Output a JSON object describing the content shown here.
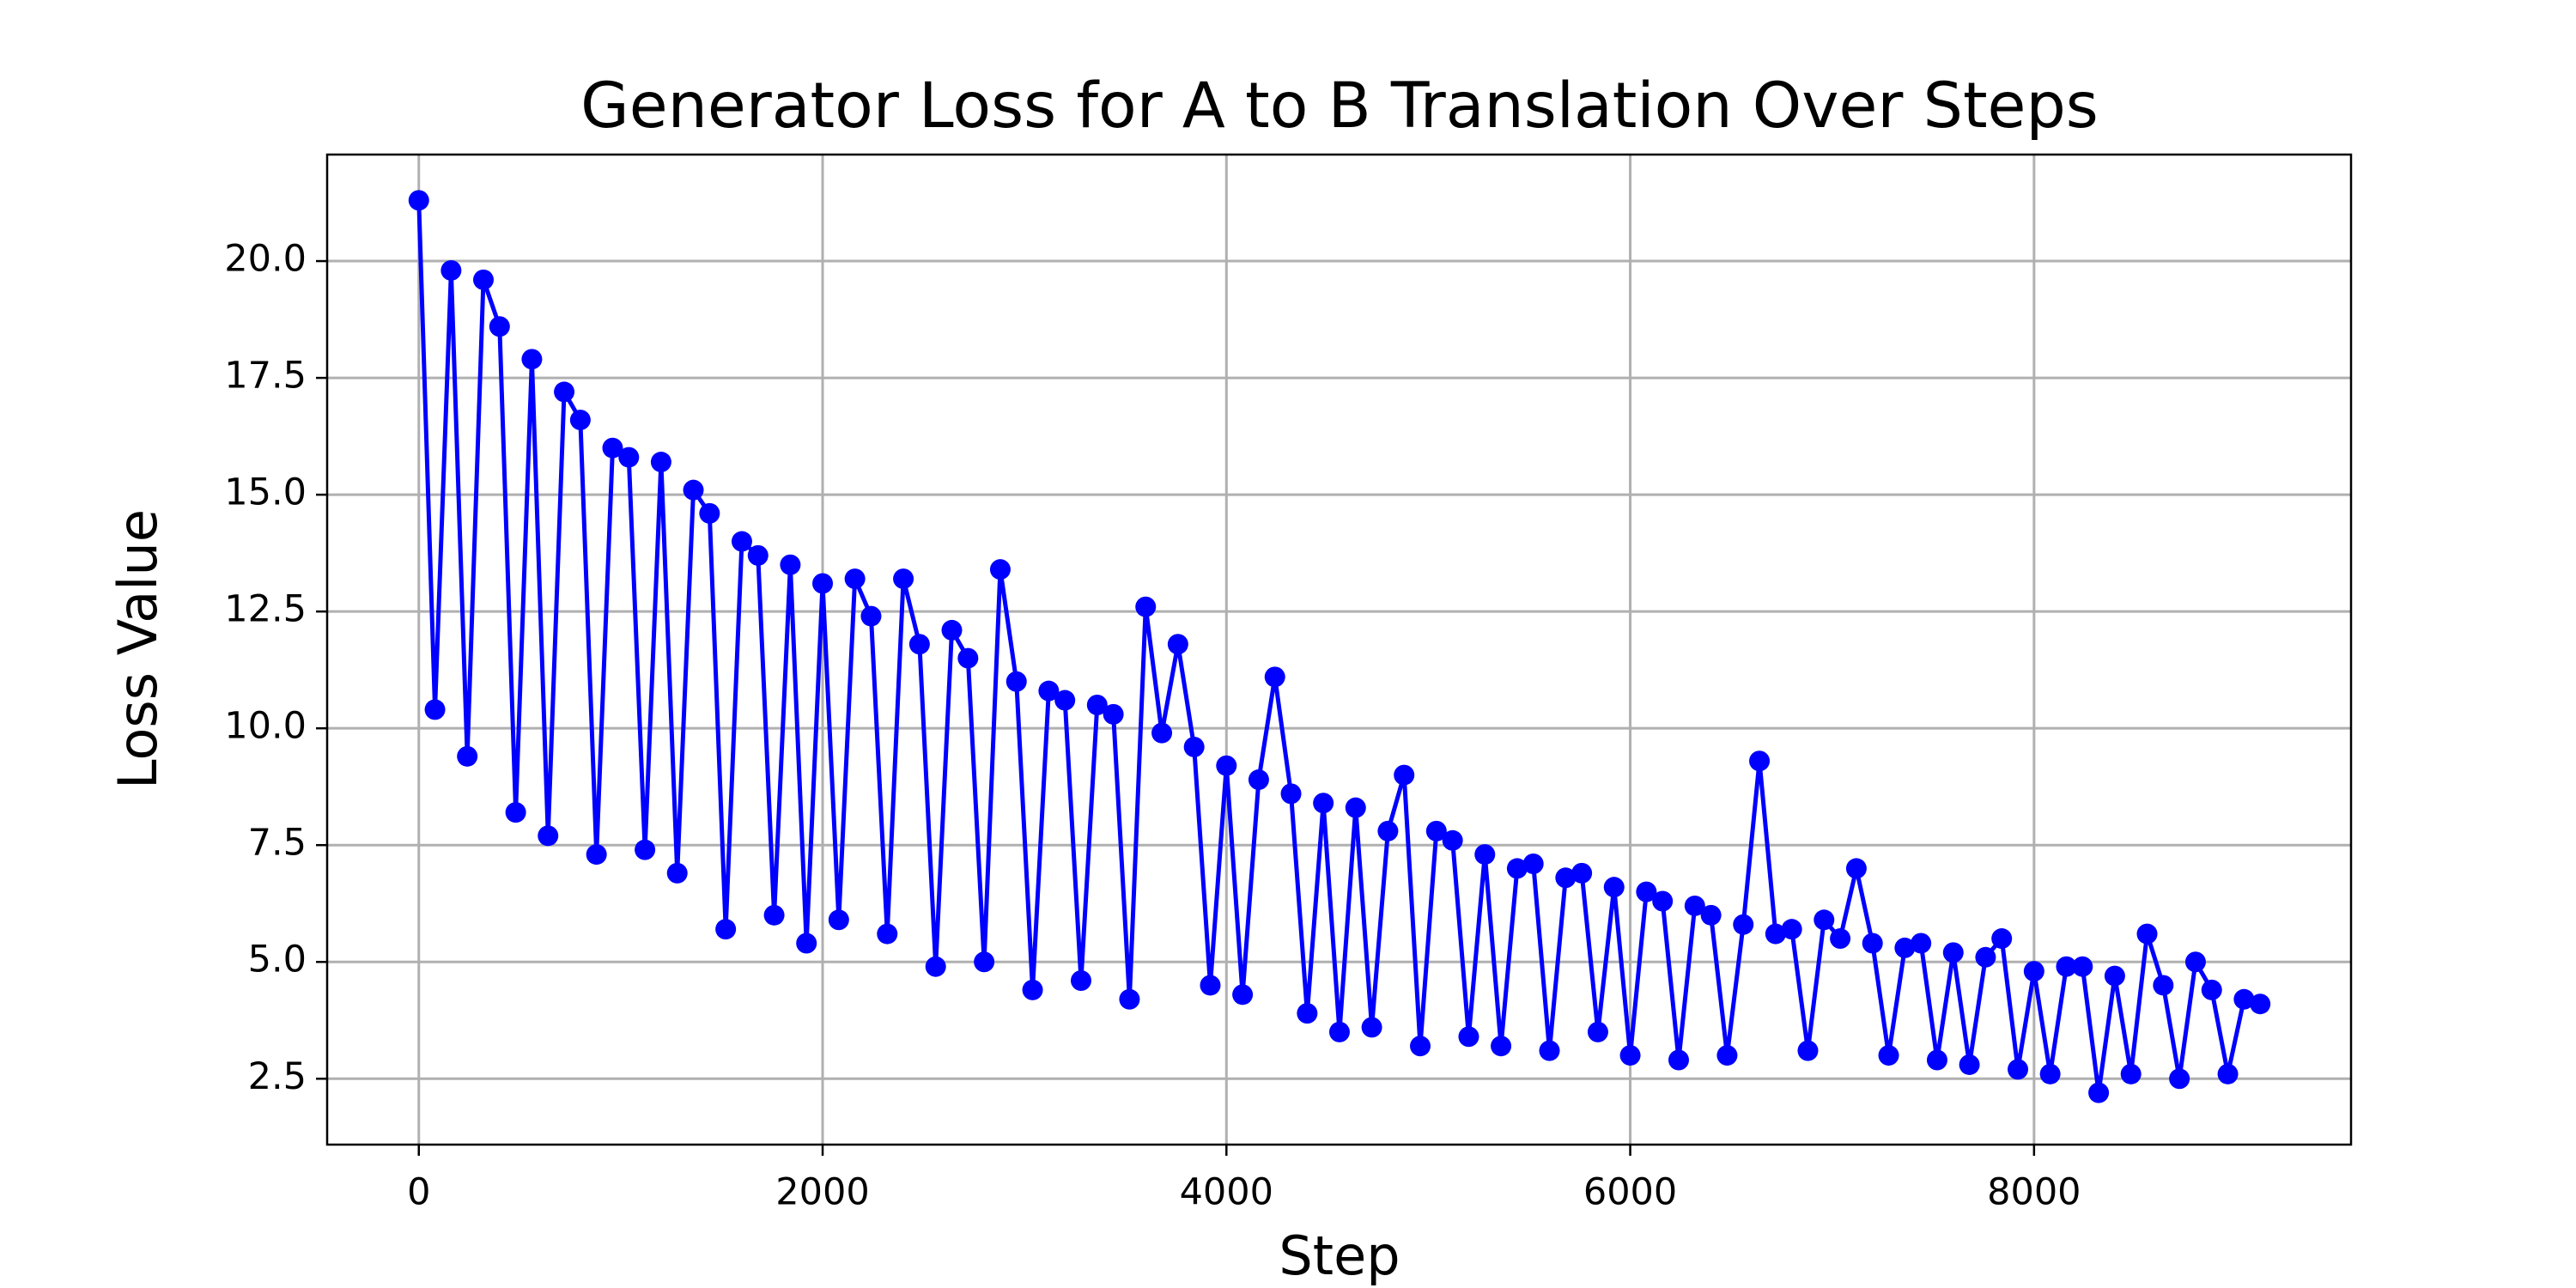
{
  "chart_data": {
    "type": "line",
    "title": "Generator Loss for A to B Translation Over Steps",
    "xlabel": "Step",
    "ylabel": "Loss Value",
    "x": [
      0,
      80,
      160,
      240,
      320,
      400,
      480,
      560,
      640,
      720,
      800,
      880,
      960,
      1040,
      1120,
      1200,
      1280,
      1360,
      1440,
      1520,
      1600,
      1680,
      1760,
      1840,
      1920,
      2000,
      2080,
      2160,
      2240,
      2320,
      2400,
      2480,
      2560,
      2640,
      2720,
      2800,
      2880,
      2960,
      3040,
      3120,
      3200,
      3280,
      3360,
      3440,
      3520,
      3600,
      3680,
      3760,
      3840,
      3920,
      4000,
      4080,
      4160,
      4240,
      4320,
      4400,
      4480,
      4560,
      4640,
      4720,
      4800,
      4880,
      4960,
      5040,
      5120,
      5200,
      5280,
      5360,
      5440,
      5520,
      5600,
      5680,
      5760,
      5840,
      5920,
      6000,
      6080,
      6160,
      6240,
      6320,
      6400,
      6480,
      6560,
      6640,
      6720,
      6800,
      6880,
      6960,
      7040,
      7120,
      7200,
      7280,
      7360,
      7440,
      7520,
      7600,
      7680,
      7760,
      7840,
      7920,
      8000,
      8080,
      8160,
      8240,
      8320,
      8400,
      8480,
      8560,
      8640,
      8720,
      8800,
      8880,
      8960,
      9040,
      9120
    ],
    "series": [
      {
        "name": "Generator Loss",
        "color": "#0000ff",
        "marker": "o",
        "values": [
          21.3,
          10.4,
          19.8,
          9.4,
          19.6,
          18.6,
          8.2,
          17.9,
          7.7,
          17.2,
          16.6,
          7.3,
          16.0,
          15.8,
          7.4,
          15.7,
          6.9,
          15.1,
          14.6,
          5.7,
          14.0,
          13.7,
          6.0,
          13.5,
          5.4,
          13.1,
          5.9,
          13.2,
          12.4,
          5.6,
          13.2,
          11.8,
          4.9,
          12.1,
          11.5,
          5.0,
          13.4,
          11.0,
          4.4,
          10.8,
          10.6,
          4.6,
          10.5,
          10.3,
          4.2,
          12.6,
          9.9,
          11.8,
          9.6,
          4.5,
          9.2,
          4.3,
          8.9,
          11.1,
          8.6,
          3.9,
          8.4,
          3.5,
          8.3,
          3.6,
          7.8,
          9.0,
          3.2,
          7.8,
          7.6,
          3.4,
          7.3,
          3.2,
          7.0,
          7.1,
          3.1,
          6.8,
          6.9,
          3.5,
          6.6,
          3.0,
          6.5,
          6.3,
          2.9,
          6.2,
          6.0,
          3.0,
          5.8,
          9.3,
          5.6,
          5.7,
          3.1,
          5.9,
          5.5,
          7.0,
          5.4,
          3.0,
          5.3,
          5.4,
          2.9,
          5.2,
          2.8,
          5.1,
          5.5,
          2.7,
          4.8,
          2.6,
          4.9,
          4.9,
          2.2,
          4.7,
          2.6,
          5.6,
          4.5,
          2.5,
          5.0,
          4.4,
          2.6,
          4.2,
          4.1
        ]
      }
    ],
    "xlim": [
      -454,
      9570
    ],
    "ylim": [
      1.09,
      22.28
    ],
    "xticks": [
      0,
      2000,
      4000,
      6000,
      8000
    ],
    "yticks": [
      2.5,
      {
        "value": 5,
        "label": "5.0"
      },
      7.5,
      {
        "value": 10,
        "label": "10.0"
      },
      12.5,
      {
        "value": 15,
        "label": "15.0"
      },
      17.5,
      {
        "value": 20,
        "label": "20.0"
      }
    ],
    "grid": true
  }
}
